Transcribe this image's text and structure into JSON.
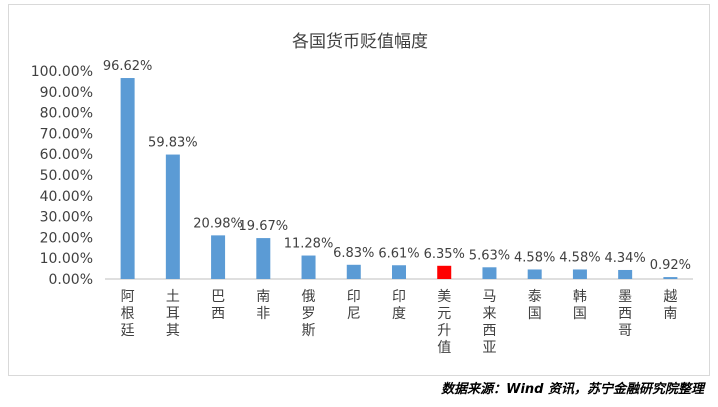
{
  "chart_data": {
    "type": "bar",
    "title": "各国货币贬值幅度",
    "categories": [
      "阿根廷",
      "土耳其",
      "巴西",
      "南非",
      "俄罗斯",
      "印尼",
      "印度",
      "美元升值",
      "马来西亚",
      "泰国",
      "韩国",
      "墨西哥",
      "越南"
    ],
    "values": [
      96.62,
      59.83,
      20.98,
      19.67,
      11.28,
      6.83,
      6.61,
      6.35,
      5.63,
      4.58,
      4.58,
      4.34,
      0.92
    ],
    "data_labels": [
      "96.62%",
      "59.83%",
      "20.98%",
      "19.67%",
      "11.28%",
      "6.83%",
      "6.61%",
      "6.35%",
      "5.63%",
      "4.58%",
      "4.58%",
      "4.34%",
      "0.92%"
    ],
    "y_ticks": [
      "0.00%",
      "10.00%",
      "20.00%",
      "30.00%",
      "40.00%",
      "50.00%",
      "60.00%",
      "70.00%",
      "80.00%",
      "90.00%",
      "100.00%"
    ],
    "ylim": [
      0,
      100
    ],
    "grid": false,
    "legend": "none",
    "bar_color": "#5b9bd5",
    "highlight_color": "#ff0000",
    "highlight_category": "美元升值"
  },
  "source": "数据来源：Wind 资讯，苏宁金融研究院整理"
}
